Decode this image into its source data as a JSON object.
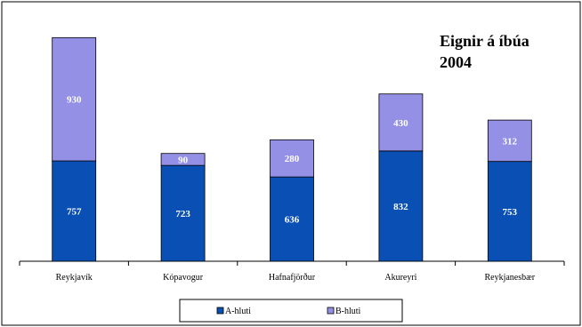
{
  "chart_data": {
    "type": "bar",
    "stacked": true,
    "title": [
      "Eignir á íbúa",
      "2004"
    ],
    "categories": [
      "Reykjavík",
      "Kópavogur",
      "Hafnafjörður",
      "Akureyri",
      "Reykjanesbær"
    ],
    "series": [
      {
        "name": "A-hluti",
        "values": [
          757,
          723,
          636,
          832,
          753
        ],
        "color": "#0a50b4"
      },
      {
        "name": "B-hluti",
        "values": [
          930,
          90,
          280,
          430,
          312
        ],
        "color": "#9490e6"
      }
    ],
    "ylim": [
      0,
      1850
    ],
    "grid": false,
    "legend": "bottom-center"
  }
}
